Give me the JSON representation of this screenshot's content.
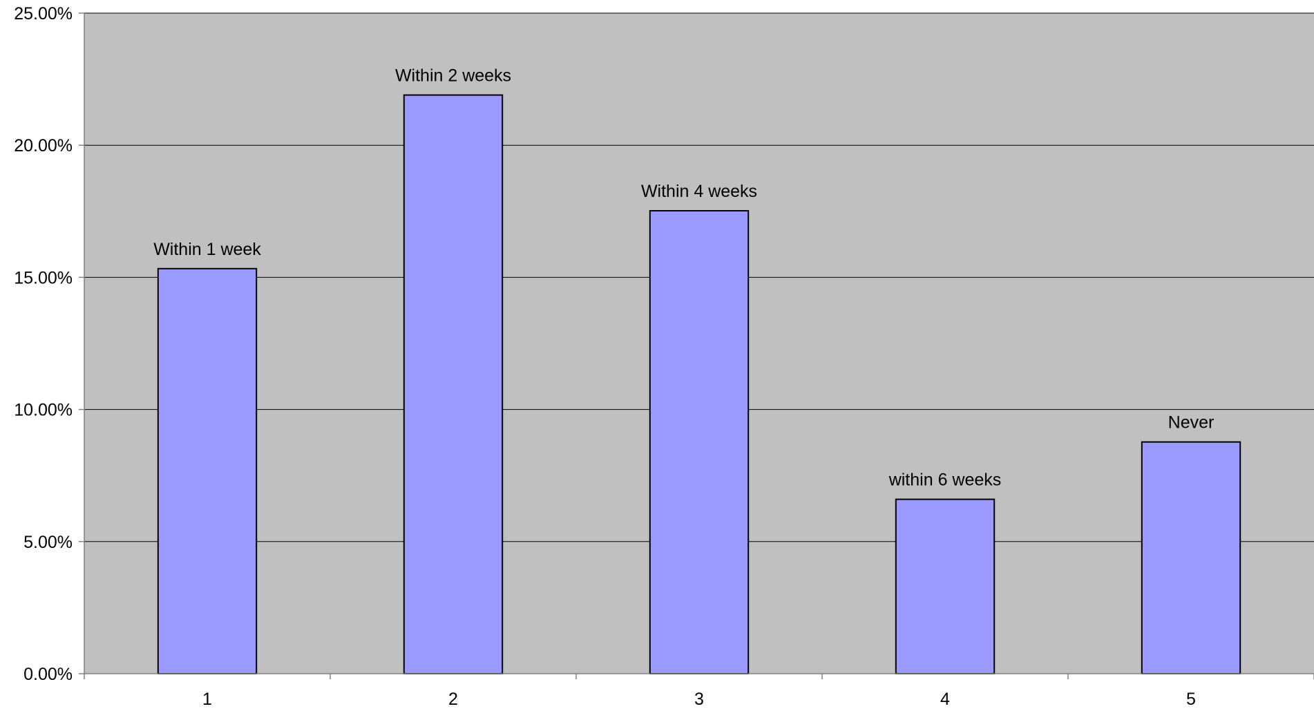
{
  "chart_data": {
    "type": "bar",
    "categories": [
      "1",
      "2",
      "3",
      "4",
      "5"
    ],
    "values": [
      15.33,
      21.9,
      17.52,
      6.6,
      8.77
    ],
    "data_labels": [
      "Within 1 week",
      "Within 2 weeks",
      "Within 4 weeks",
      "within 6 weeks",
      "Never"
    ],
    "y_ticks": [
      "0.00%",
      "5.00%",
      "10.00%",
      "15.00%",
      "20.00%",
      "25.00%"
    ],
    "ylim": [
      0,
      25
    ],
    "y_unit": "%",
    "title": "",
    "xlabel": "",
    "ylabel": "",
    "legend": "none",
    "grid": true,
    "colors": {
      "plot_background": "#c0c0c0",
      "bar_fill": "#9999ff",
      "bar_stroke": "#000000",
      "gridline": "#000000",
      "axis": "#808080"
    }
  }
}
